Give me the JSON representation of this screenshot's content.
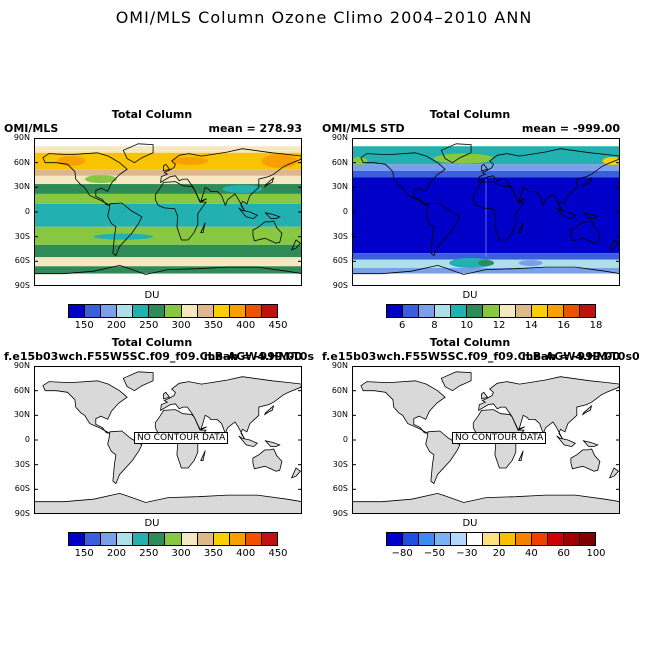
{
  "title": "OMI/MLS Column Ozone Climo 2004–2010 ANN",
  "lat_labels": [
    "90N",
    "60N",
    "30N",
    "0",
    "30S",
    "60S",
    "90S"
  ],
  "panels": [
    {
      "title": "Total Column",
      "left_label": "OMI/MLS",
      "right_label": "mean = 278.93",
      "colorbar": {
        "label": "DU",
        "colors": [
          "#0000c8",
          "#3a5fdc",
          "#7aa0ea",
          "#aee0ea",
          "#22b0b0",
          "#2e8b57",
          "#88c840",
          "#f5e8c0",
          "#dcb88a",
          "#f8d000",
          "#f8a000",
          "#f05000",
          "#c01010"
        ],
        "ticks": [
          "150",
          "200",
          "250",
          "300",
          "350",
          "400",
          "450"
        ]
      }
    },
    {
      "title": "Total Column",
      "left_label": "OMI/MLS STD",
      "right_label": "mean = -999.00",
      "colorbar": {
        "label": "DU",
        "colors": [
          "#0000c8",
          "#3a5fdc",
          "#7aa0ea",
          "#aee0ea",
          "#22b0b0",
          "#2e8b57",
          "#88c840",
          "#f5e8c0",
          "#dcb88a",
          "#f8d000",
          "#f8a000",
          "#f05000",
          "#c01010"
        ],
        "ticks": [
          "6",
          "8",
          "10",
          "12",
          "14",
          "16",
          "18"
        ]
      }
    },
    {
      "title": "Total Column",
      "left_label": "f.e15b03wch.F55W5SC.f09_f09.CLB-AGW4.HM-T0s",
      "right_label": "mean = -999.00",
      "no_contour": "NO CONTOUR DATA",
      "colorbar": {
        "label": "DU",
        "colors": [
          "#0000c8",
          "#3a5fdc",
          "#7aa0ea",
          "#aee0ea",
          "#22b0b0",
          "#2e8b57",
          "#88c840",
          "#f5e8c0",
          "#dcb88a",
          "#f8d000",
          "#f8a000",
          "#f05000",
          "#c01010"
        ],
        "ticks": [
          "150",
          "200",
          "250",
          "300",
          "350",
          "400",
          "450"
        ]
      }
    },
    {
      "title": "Total Column",
      "left_label": "f.e15b03wch.F55W5SC.f09_f09.CLB-AGW4.HM-T0s0",
      "right_label": "mean = -999.00",
      "no_contour": "NO CONTOUR DATA",
      "colorbar": {
        "label": "DU",
        "colors": [
          "#0000c8",
          "#1e50e0",
          "#3c8cf0",
          "#78b4f5",
          "#b4d8fa",
          "#ffffff",
          "#ffe080",
          "#f8c000",
          "#f88000",
          "#f04000",
          "#d00000",
          "#a00000",
          "#800000"
        ],
        "ticks": [
          "−80",
          "−50",
          "−30",
          "20",
          "40",
          "60",
          "100"
        ]
      }
    }
  ]
}
